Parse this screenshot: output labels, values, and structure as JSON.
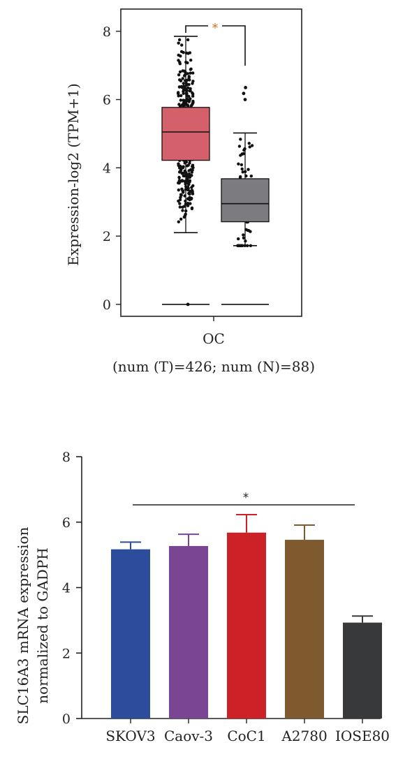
{
  "chart_data": [
    {
      "type": "box",
      "category": "OC",
      "subtitle": "(num (T)=426; num (N)=88)",
      "ylabel": "Expression-log2 (TPM+1)",
      "yticks": [
        0,
        2,
        4,
        6,
        8
      ],
      "ylim": [
        -0.35,
        8.65
      ],
      "significance": "*",
      "significance_color": "#d4761c",
      "series": [
        {
          "name": "T",
          "n": 426,
          "color": "#d3606a",
          "whisker_low": 2.1,
          "q1": 4.22,
          "median": 5.05,
          "q3": 5.77,
          "whisker_high": 7.85,
          "outliers": [
            0
          ],
          "point_range": [
            1.9,
            7.75
          ]
        },
        {
          "name": "N",
          "n": 88,
          "color": "#7c7c80",
          "whisker_low": 1.72,
          "q1": 2.42,
          "median": 2.95,
          "q3": 3.68,
          "whisker_high": 5.02,
          "outliers": [
            6.35,
            6.18,
            6.0
          ],
          "point_range": [
            1.72,
            5.02
          ]
        }
      ],
      "zero_lines": [
        0,
        0
      ]
    },
    {
      "type": "bar",
      "ylabel_lines": [
        "SLC16A3 mRNA expression",
        "normalized to GADPH"
      ],
      "yticks": [
        0,
        2,
        4,
        6,
        8
      ],
      "ylim": [
        0,
        8
      ],
      "categories": [
        "SKOV3",
        "Caov-3",
        "CoC1",
        "A2780",
        "IOSE80"
      ],
      "values": [
        5.17,
        5.27,
        5.68,
        5.46,
        2.93
      ],
      "errors": [
        0.22,
        0.36,
        0.55,
        0.45,
        0.2
      ],
      "colors": [
        "#2c4c9c",
        "#7a4592",
        "#cb2127",
        "#7e5a2e",
        "#38393b"
      ],
      "significance": "*"
    }
  ]
}
